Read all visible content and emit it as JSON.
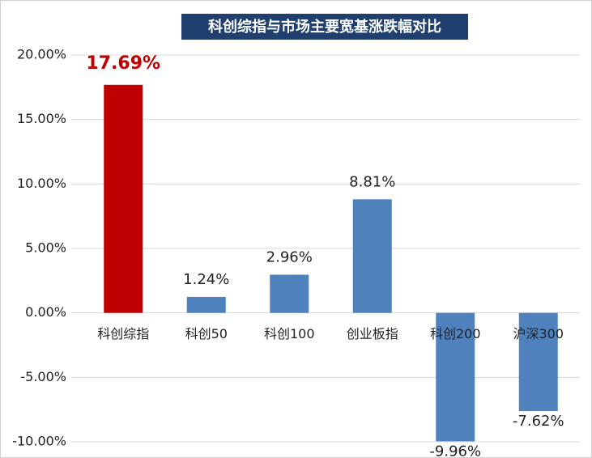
{
  "chart_data": {
    "type": "bar",
    "title": "科创综指与市场主要宽基涨跌幅对比",
    "categories": [
      "科创综指",
      "科创50",
      "科创100",
      "创业板指",
      "科创200",
      "沪深300"
    ],
    "values": [
      17.69,
      1.24,
      2.96,
      8.81,
      -9.96,
      -7.62
    ],
    "value_labels": [
      "17.69%",
      "1.24%",
      "2.96%",
      "8.81%",
      "-9.96%",
      "-7.62%"
    ],
    "colors": [
      "#c00000",
      "#4f81bd",
      "#4f81bd",
      "#4f81bd",
      "#4f81bd",
      "#4f81bd"
    ],
    "value_label_colors": [
      "#c00000",
      "#222222",
      "#222222",
      "#222222",
      "#222222",
      "#222222"
    ],
    "ylim": [
      -10,
      20
    ],
    "yticks": [
      {
        "value": -10,
        "label": "-10.00%"
      },
      {
        "value": -5,
        "label": "-5.00%"
      },
      {
        "value": 0,
        "label": "0.00%"
      },
      {
        "value": 5,
        "label": "5.00%"
      },
      {
        "value": 10,
        "label": "10.00%"
      },
      {
        "value": 15,
        "label": "15.00%"
      },
      {
        "value": 20,
        "label": "20.00%"
      }
    ],
    "grid": true
  }
}
